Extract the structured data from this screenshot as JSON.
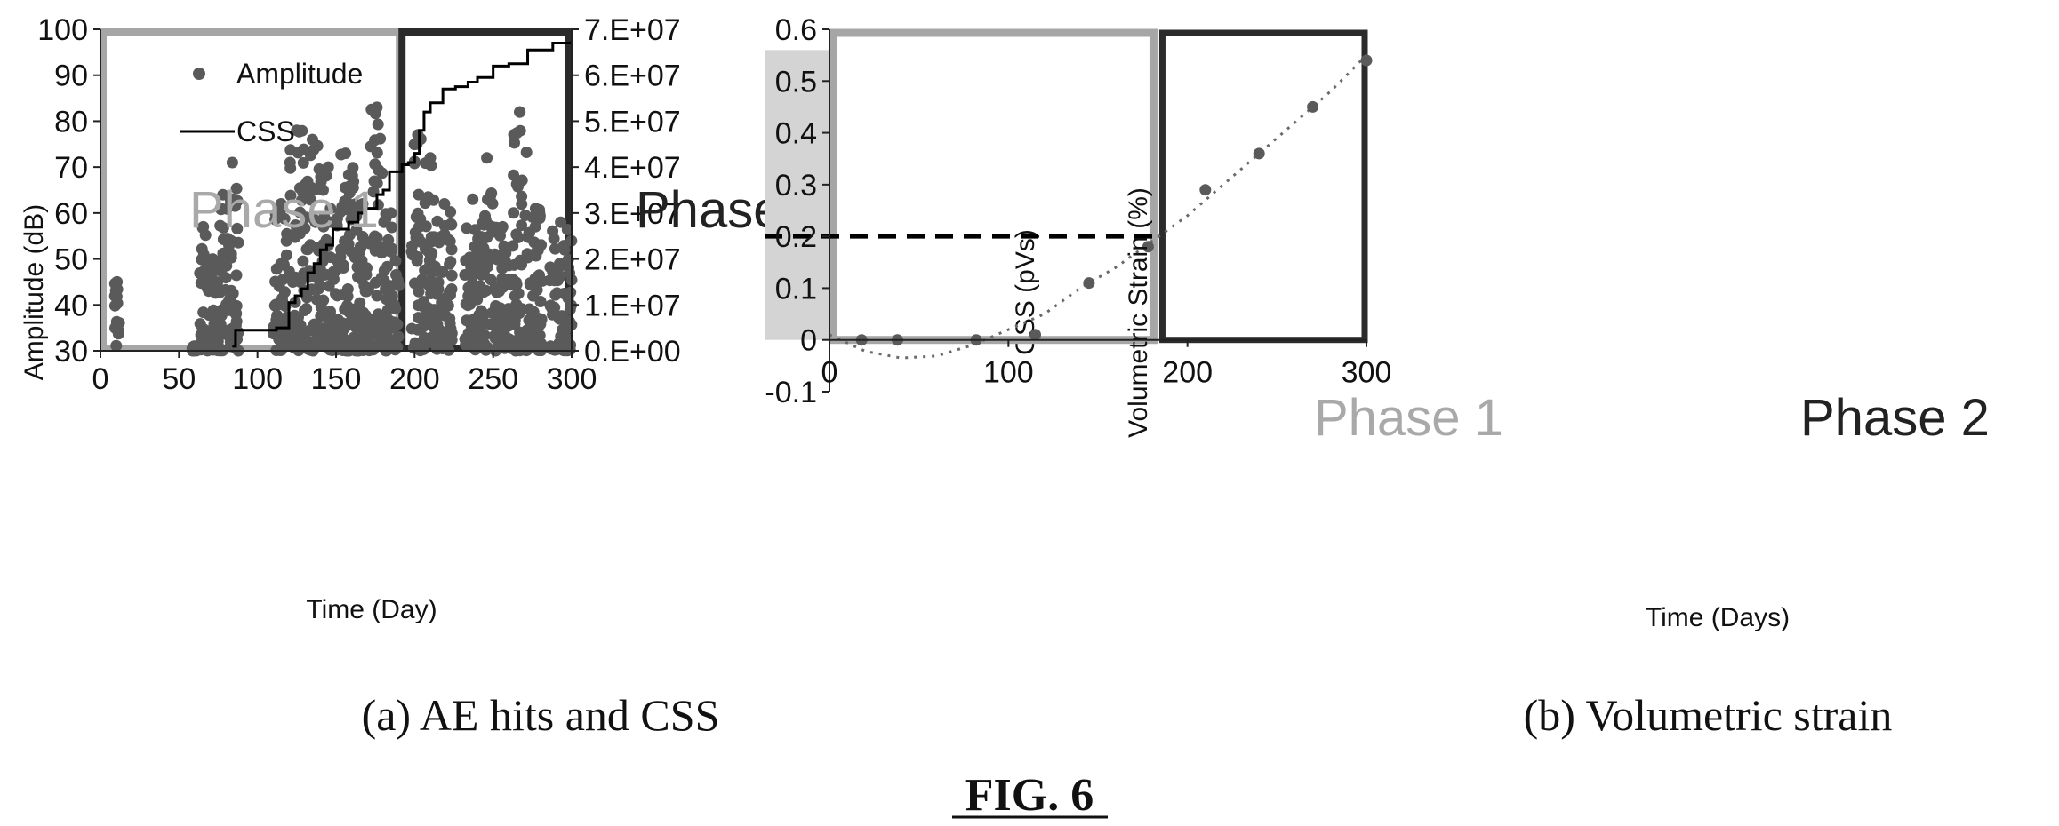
{
  "figure_label": "FIG. 6",
  "colors": {
    "points": "#5a5a5a",
    "phase1_box": "#a6a6a6",
    "phase2_box": "#2b2b2b",
    "shade": "#d4d4d4"
  },
  "chart_data": [
    {
      "type": "scatter",
      "caption": "(a) AE hits and CSS",
      "xlabel": "Time (Day)",
      "ylabel": "Amplitude (dB)",
      "y2label": "CSS (pVs)",
      "xlim": [
        0,
        300
      ],
      "ylim": [
        30,
        100
      ],
      "y2lim": [
        0,
        70000000
      ],
      "xticks": [
        "0",
        "50",
        "100",
        "150",
        "200",
        "250",
        "300"
      ],
      "yticks": [
        "30",
        "40",
        "50",
        "60",
        "70",
        "80",
        "90",
        "100"
      ],
      "y2ticks": [
        "0.E+00",
        "1.E+07",
        "2.E+07",
        "3.E+07",
        "4.E+07",
        "5.E+07",
        "6.E+07",
        "7.E+07"
      ],
      "legend": [
        "Amplitude",
        "CSS"
      ],
      "annotations": [
        "Phase 1",
        "Phase 2"
      ],
      "phase_boundary_day": 192,
      "series": [
        {
          "name": "Amplitude",
          "kind": "scatter",
          "clusters": [
            {
              "x": [
                9,
                12
              ],
              "y": [
                31,
                45
              ]
            },
            {
              "x": [
                58,
                62
              ],
              "y": [
                30,
                31
              ]
            },
            {
              "x": [
                63,
                68
              ],
              "y": [
                30,
                57
              ]
            },
            {
              "x": [
                68,
                75
              ],
              "y": [
                30,
                50
              ]
            },
            {
              "x": [
                76,
                80
              ],
              "y": [
                30,
                64
              ]
            },
            {
              "x": [
                80,
                88
              ],
              "y": [
                30,
                71
              ]
            },
            {
              "x": [
                110,
                120
              ],
              "y": [
                30,
                62
              ]
            },
            {
              "x": [
                120,
                130
              ],
              "y": [
                30,
                78
              ]
            },
            {
              "x": [
                130,
                140
              ],
              "y": [
                30,
                76
              ]
            },
            {
              "x": [
                140,
                150
              ],
              "y": [
                30,
                70
              ]
            },
            {
              "x": [
                150,
                162
              ],
              "y": [
                30,
                73
              ]
            },
            {
              "x": [
                162,
                172
              ],
              "y": [
                30,
                62
              ]
            },
            {
              "x": [
                172,
                180
              ],
              "y": [
                30,
                83
              ]
            },
            {
              "x": [
                180,
                190
              ],
              "y": [
                30,
                60
              ]
            },
            {
              "x": [
                198,
                206
              ],
              "y": [
                30,
                77
              ]
            },
            {
              "x": [
                206,
                214
              ],
              "y": [
                30,
                72
              ]
            },
            {
              "x": [
                214,
                224
              ],
              "y": [
                30,
                62
              ]
            },
            {
              "x": [
                232,
                242
              ],
              "y": [
                30,
                63
              ]
            },
            {
              "x": [
                242,
                250
              ],
              "y": [
                30,
                72
              ]
            },
            {
              "x": [
                250,
                262
              ],
              "y": [
                30,
                57
              ]
            },
            {
              "x": [
                262,
                272
              ],
              "y": [
                30,
                82
              ]
            },
            {
              "x": [
                272,
                282
              ],
              "y": [
                30,
                61
              ]
            },
            {
              "x": [
                286,
                300
              ],
              "y": [
                30,
                58
              ]
            }
          ]
        },
        {
          "name": "CSS",
          "kind": "step",
          "x": [
            84,
            86,
            86,
            110,
            112,
            120,
            124,
            128,
            132,
            136,
            140,
            144,
            148,
            152,
            158,
            164,
            168,
            172,
            176,
            180,
            184,
            192,
            196,
            200,
            203,
            206,
            210,
            218,
            226,
            234,
            240,
            250,
            260,
            272,
            288,
            300
          ],
          "y": [
            1000000,
            1000000,
            4500000,
            4500000,
            5000000,
            10500000,
            12000000,
            13500000,
            17000000,
            19000000,
            22000000,
            23000000,
            26500000,
            26500000,
            28000000,
            30000000,
            31000000,
            31000000,
            34000000,
            35000000,
            39000000,
            40500000,
            41000000,
            43000000,
            48000000,
            52000000,
            54000000,
            57000000,
            57500000,
            58500000,
            59500000,
            62000000,
            62500000,
            65500000,
            67000000,
            67500000
          ]
        }
      ]
    },
    {
      "type": "scatter",
      "caption": "(b) Volumetric strain",
      "xlabel": "Time (Days)",
      "ylabel": "Volumetric Strain (%)",
      "xlim": [
        0,
        300
      ],
      "ylim": [
        -0.1,
        0.6
      ],
      "xticks": [
        "0",
        "100",
        "200",
        "300"
      ],
      "yticks": [
        "-0.1",
        "0",
        "0.1",
        "0.2",
        "0.3",
        "0.4",
        "0.5",
        "0.6"
      ],
      "annotations": [
        "Phase 1",
        "Phase 2"
      ],
      "threshold_strain": 0.2,
      "phase_boundary_day": 183,
      "series": [
        {
          "name": "Volumetric strain",
          "kind": "scatter",
          "x": [
            18,
            38,
            82,
            115,
            145,
            178,
            210,
            240,
            270,
            300
          ],
          "y": [
            0,
            0,
            0,
            0.01,
            0.11,
            0.18,
            0.29,
            0.36,
            0.45,
            0.54
          ]
        },
        {
          "name": "Trend",
          "kind": "dotted-curve",
          "x": [
            0,
            20,
            40,
            60,
            80,
            100,
            120,
            140,
            160,
            180,
            200,
            220,
            240,
            260,
            280,
            300
          ],
          "y": [
            0.01,
            -0.022,
            -0.035,
            -0.031,
            -0.01,
            0.02,
            0.05,
            0.1,
            0.14,
            0.19,
            0.24,
            0.3,
            0.36,
            0.42,
            0.48,
            0.55
          ]
        }
      ]
    }
  ]
}
